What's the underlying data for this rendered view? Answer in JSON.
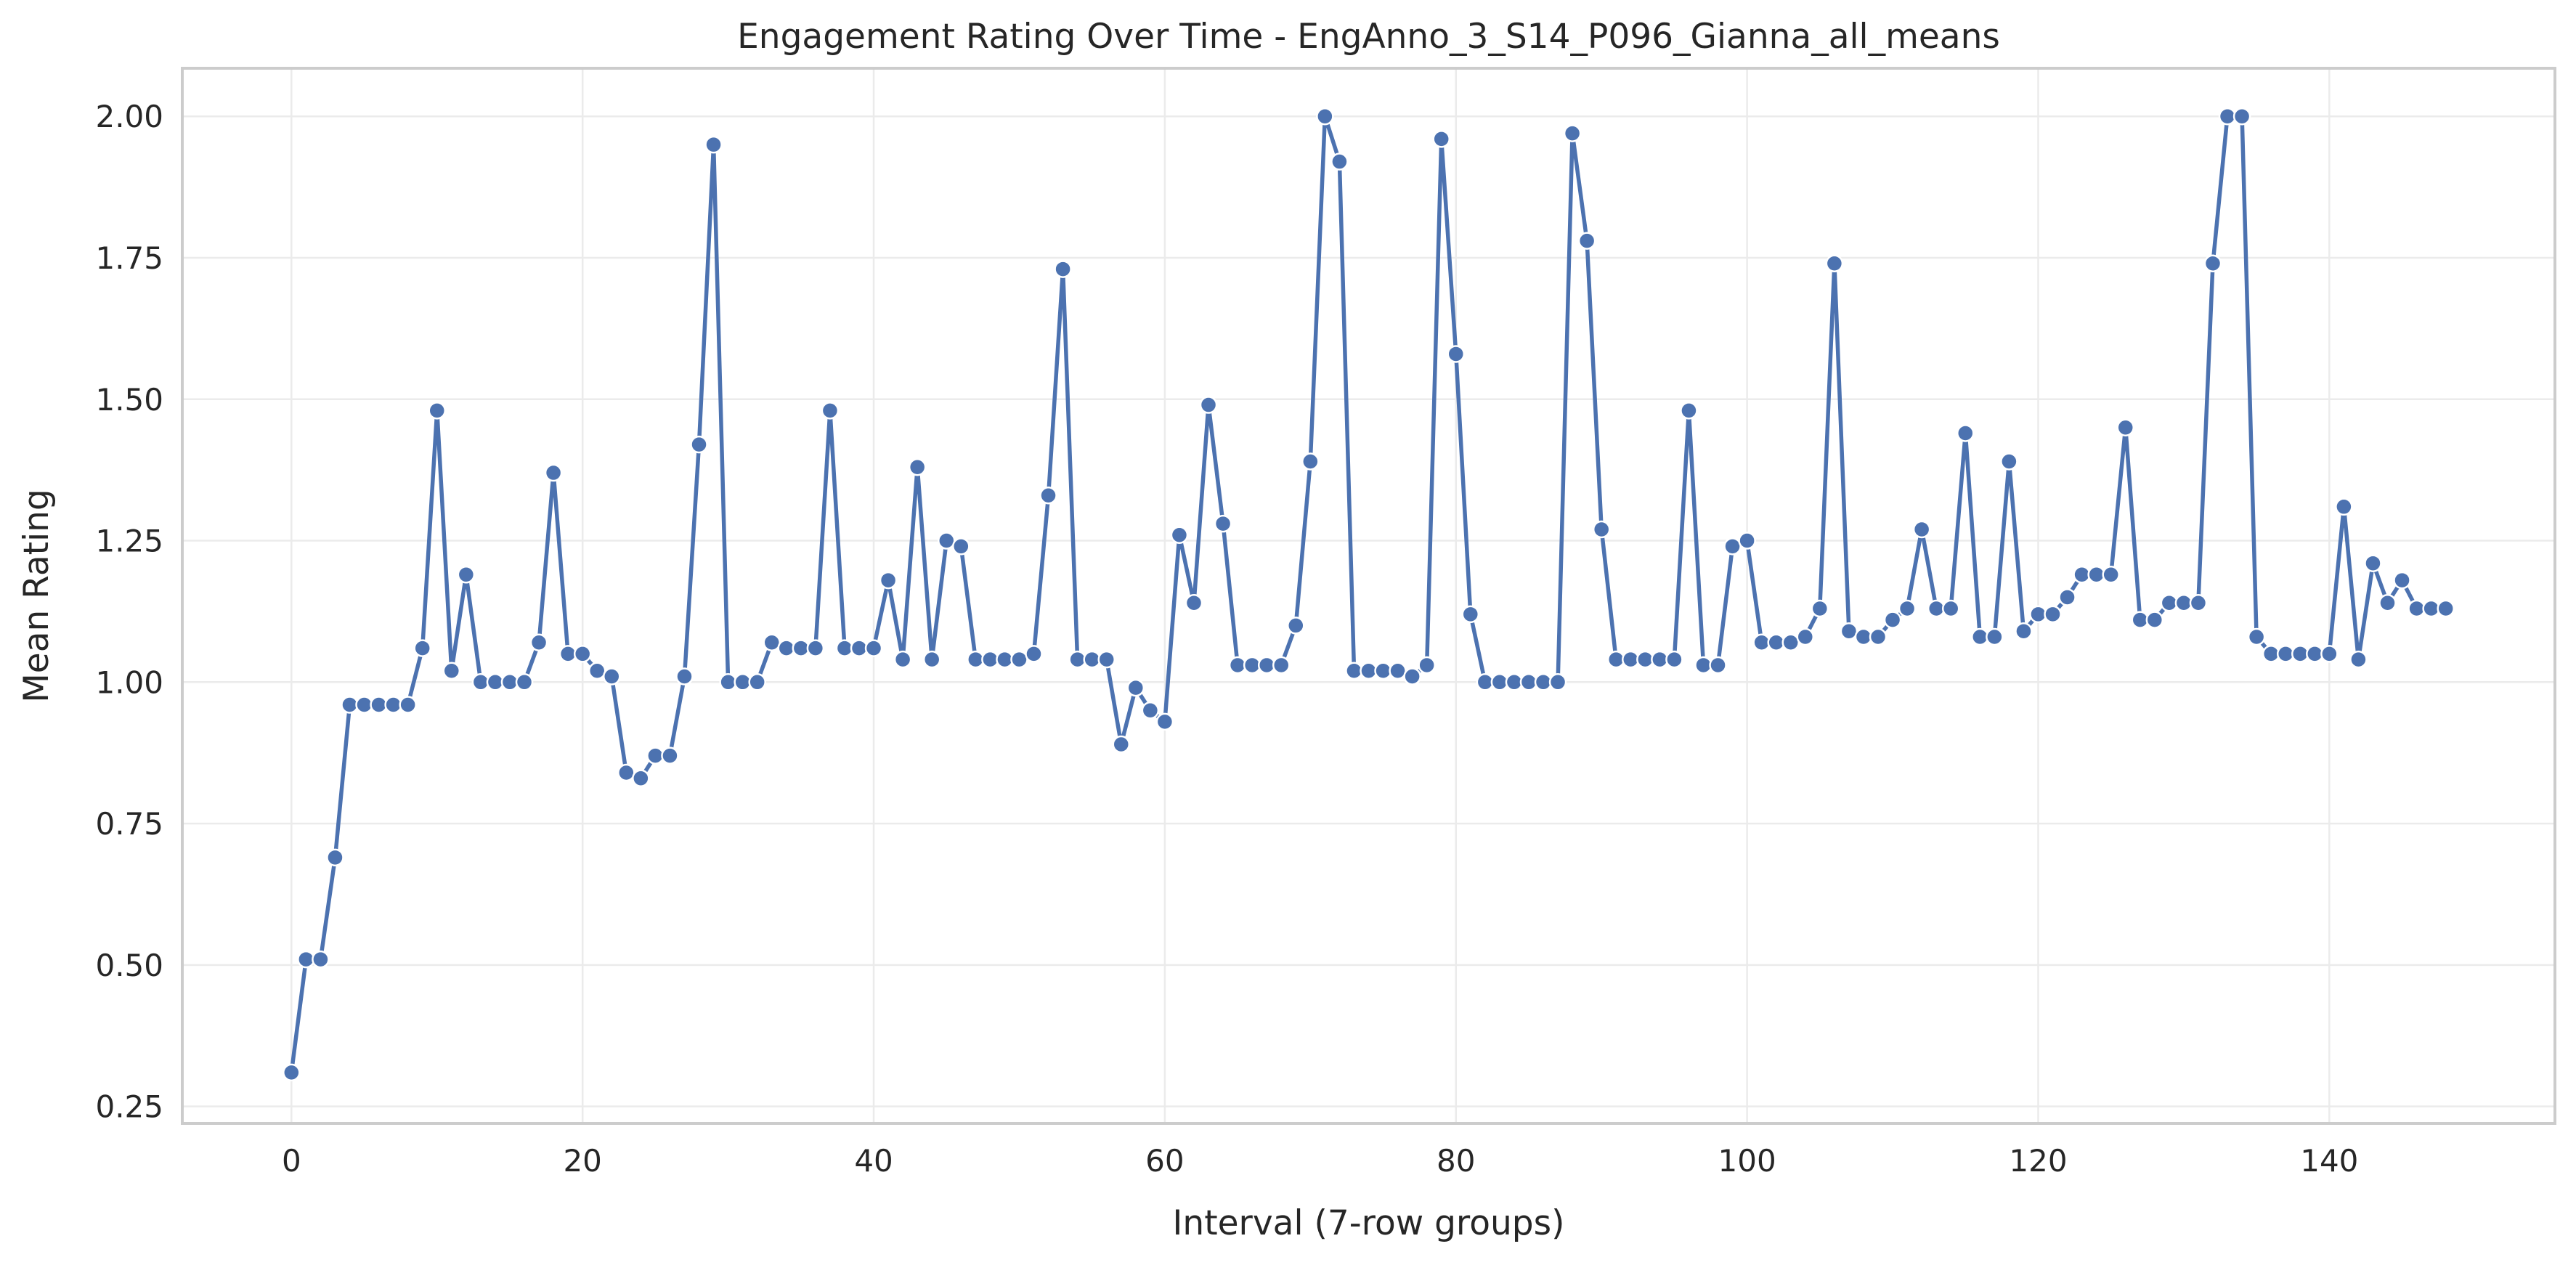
{
  "chart_data": {
    "type": "line",
    "title": "Engagement Rating Over Time -  EngAnno_3_S14_P096_Gianna_all_means",
    "xlabel": "Interval (7-row groups)",
    "ylabel": "Mean Rating",
    "xlim": [
      -7.5,
      155.5
    ],
    "ylim": [
      0.22,
      2.085
    ],
    "xticks": [
      0,
      20,
      40,
      60,
      80,
      100,
      120,
      140
    ],
    "xtick_labels": [
      "0",
      "20",
      "40",
      "60",
      "80",
      "100",
      "120",
      "140"
    ],
    "yticks": [
      0.25,
      0.5,
      0.75,
      1.0,
      1.25,
      1.5,
      1.75,
      2.0
    ],
    "ytick_labels": [
      "0.25",
      "0.50",
      "0.75",
      "1.00",
      "1.25",
      "1.50",
      "1.75",
      "2.00"
    ],
    "grid": true,
    "colors": {
      "line": "#4c72b0",
      "marker_edge": "#ffffff",
      "grid": "#ebebeb",
      "frame": "#cccccc",
      "text": "#262626"
    },
    "series": [
      {
        "x": [
          0,
          1,
          2,
          3,
          4,
          5,
          6,
          7,
          8,
          9,
          10,
          11,
          12,
          13,
          14,
          15,
          16,
          17,
          18,
          19,
          20,
          21,
          22,
          23,
          24,
          25,
          26,
          27,
          28,
          29,
          30,
          31,
          32,
          33,
          34,
          35,
          36,
          37,
          38,
          39,
          40,
          41,
          42,
          43,
          44,
          45,
          46,
          47,
          48,
          49,
          50,
          51,
          52,
          53,
          54,
          55,
          56,
          57,
          58,
          59,
          60,
          61,
          62,
          63,
          64,
          65,
          66,
          67,
          68,
          69,
          70,
          71,
          72,
          73,
          74,
          75,
          76,
          77,
          78,
          79,
          80,
          81,
          82,
          83,
          84,
          85,
          86,
          87,
          88,
          89,
          90,
          91,
          92,
          93,
          94,
          95,
          96,
          97,
          98,
          99,
          100,
          101,
          102,
          103,
          104,
          105,
          106,
          107,
          108,
          109,
          110,
          111,
          112,
          113,
          114,
          115,
          116,
          117,
          118,
          119,
          120,
          121,
          122,
          123,
          124,
          125,
          126,
          127,
          128,
          129,
          130,
          131,
          132,
          133,
          134,
          135,
          136,
          137,
          138,
          139,
          140,
          141,
          142,
          143,
          144,
          145,
          146,
          147,
          148
        ],
        "y": [
          0.31,
          0.51,
          0.51,
          0.69,
          0.96,
          0.96,
          0.96,
          0.96,
          0.96,
          1.06,
          1.48,
          1.02,
          1.19,
          1.0,
          1.0,
          1.0,
          1.0,
          1.07,
          1.37,
          1.05,
          1.05,
          1.02,
          1.01,
          0.84,
          0.83,
          0.87,
          0.87,
          1.01,
          1.42,
          1.95,
          1.0,
          1.0,
          1.0,
          1.07,
          1.06,
          1.06,
          1.06,
          1.48,
          1.06,
          1.06,
          1.06,
          1.18,
          1.04,
          1.38,
          1.04,
          1.25,
          1.24,
          1.04,
          1.04,
          1.04,
          1.04,
          1.05,
          1.33,
          1.73,
          1.04,
          1.04,
          1.04,
          0.89,
          0.99,
          0.95,
          0.93,
          1.26,
          1.14,
          1.49,
          1.28,
          1.03,
          1.03,
          1.03,
          1.03,
          1.1,
          1.39,
          2.0,
          1.92,
          1.02,
          1.02,
          1.02,
          1.02,
          1.01,
          1.03,
          1.96,
          1.58,
          1.12,
          1.0,
          1.0,
          1.0,
          1.0,
          1.0,
          1.0,
          1.97,
          1.78,
          1.27,
          1.04,
          1.04,
          1.04,
          1.04,
          1.04,
          1.48,
          1.03,
          1.03,
          1.24,
          1.25,
          1.07,
          1.07,
          1.07,
          1.08,
          1.13,
          1.74,
          1.09,
          1.08,
          1.08,
          1.11,
          1.13,
          1.27,
          1.13,
          1.13,
          1.44,
          1.08,
          1.08,
          1.39,
          1.09,
          1.12,
          1.12,
          1.15,
          1.19,
          1.19,
          1.19,
          1.45,
          1.11,
          1.11,
          1.14,
          1.14,
          1.14,
          1.74,
          2.0,
          2.0,
          1.08,
          1.05,
          1.05,
          1.05,
          1.05,
          1.05,
          1.31,
          1.04,
          1.21,
          1.14,
          1.18,
          1.13,
          1.13,
          1.13
        ]
      }
    ]
  }
}
